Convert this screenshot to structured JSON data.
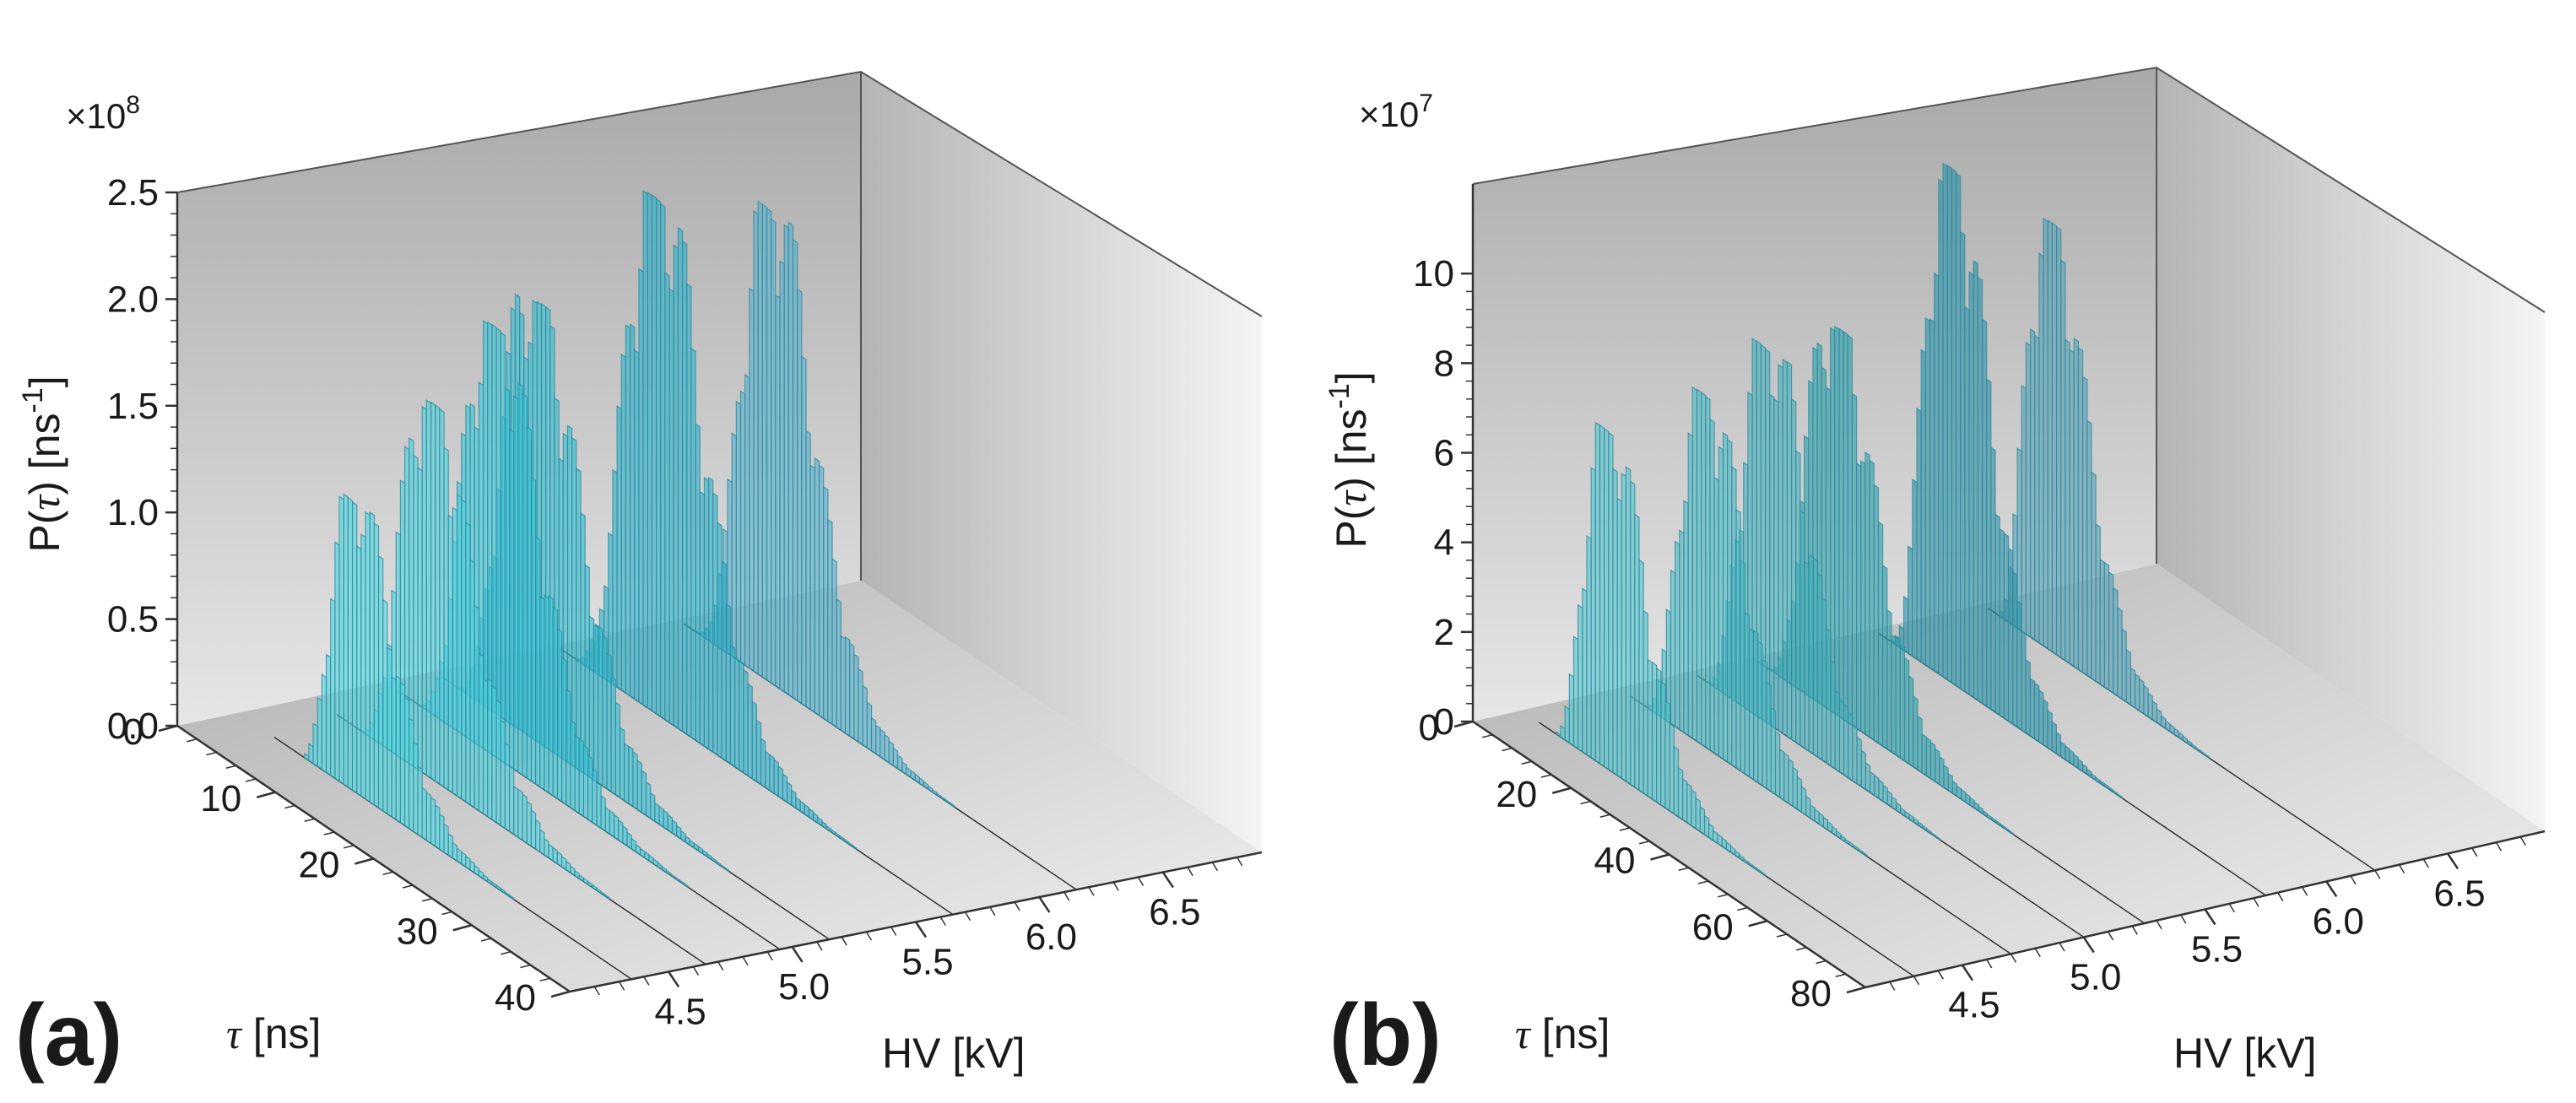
{
  "figure": {
    "panels": [
      "a",
      "b"
    ]
  },
  "chart_data": [
    {
      "type": "bar",
      "panel_label": "(a)",
      "title": "",
      "multiplier": "×10",
      "multiplier_exp": "8",
      "ylabel_pre": "P(",
      "ylabel_sym": "τ",
      "ylabel_mid": ") [ns",
      "ylabel_sup": "-1",
      "ylabel_post": "]",
      "xlabel_sym": "τ",
      "xlabel_text": " [ns]",
      "hvlabel": "HV [kV]",
      "p_ticks": [
        0.0,
        0.5,
        1.0,
        1.5,
        2.0,
        2.5
      ],
      "p_tick_labels": [
        "0.0",
        "0.5",
        "1.0",
        "1.5",
        "2.0",
        "2.5"
      ],
      "p_range": [
        0,
        2.5
      ],
      "tau_ticks": [
        0,
        10,
        20,
        30,
        40
      ],
      "tau_tick_labels": [
        "0",
        "10",
        "20",
        "30",
        "40"
      ],
      "tau_range": [
        0,
        40
      ],
      "hv_ticks": [
        4.5,
        5.0,
        5.5,
        6.0,
        6.5
      ],
      "hv_tick_labels": [
        "4.5",
        "5.0",
        "5.5",
        "6.0",
        "6.5"
      ],
      "hv_range": [
        4.1,
        6.9
      ],
      "series": [
        {
          "hv": 4.35,
          "mode": 12,
          "width": 3.2,
          "peak": 1.35,
          "onset": 6
        },
        {
          "hv": 4.65,
          "mode": 12,
          "width": 3.3,
          "peak": 1.75,
          "onset": 4
        },
        {
          "hv": 4.95,
          "mode": 11,
          "width": 3.3,
          "peak": 2.0,
          "onset": 2
        },
        {
          "hv": 5.15,
          "mode": 10,
          "width": 3.4,
          "peak": 2.05,
          "onset": 1
        },
        {
          "hv": 5.65,
          "mode": 10,
          "width": 3.2,
          "peak": 2.4,
          "onset": 0
        },
        {
          "hv": 6.15,
          "mode": 9,
          "width": 3.0,
          "peak": 2.2,
          "onset": 0
        }
      ]
    },
    {
      "type": "bar",
      "panel_label": "(b)",
      "title": "",
      "multiplier": "×10",
      "multiplier_exp": "7",
      "ylabel_pre": "P(",
      "ylabel_sym": "τ",
      "ylabel_mid": ") [ns",
      "ylabel_sup": "-1",
      "ylabel_post": "]",
      "xlabel_sym": "τ",
      "xlabel_text": " [ns]",
      "hvlabel": "HV [kV]",
      "p_ticks": [
        0,
        2,
        4,
        6,
        8,
        10
      ],
      "p_tick_labels": [
        "0",
        "2",
        "4",
        "6",
        "8",
        "10"
      ],
      "p_range": [
        0,
        12
      ],
      "tau_ticks": [
        0,
        20,
        40,
        60,
        80
      ],
      "tau_tick_labels": [
        "0",
        "20",
        "40",
        "60",
        "80"
      ],
      "tau_range": [
        0,
        80
      ],
      "hv_ticks": [
        4.5,
        5.0,
        5.5,
        6.0,
        6.5
      ],
      "hv_tick_labels": [
        "4.5",
        "5.0",
        "5.5",
        "6.0",
        "6.5"
      ],
      "hv_range": [
        4.1,
        6.9
      ],
      "series": [
        {
          "hv": 4.3,
          "mode": 18,
          "width": 6.0,
          "peak": 7.5,
          "onset": 6
        },
        {
          "hv": 4.7,
          "mode": 18,
          "width": 6.0,
          "peak": 7.8,
          "onset": 4
        },
        {
          "hv": 5.0,
          "mode": 16,
          "width": 6.5,
          "peak": 8.3,
          "onset": 2
        },
        {
          "hv": 5.25,
          "mode": 17,
          "width": 6.5,
          "peak": 8.6,
          "onset": 2
        },
        {
          "hv": 5.75,
          "mode": 16,
          "width": 6.0,
          "peak": 11.4,
          "onset": 2
        },
        {
          "hv": 6.2,
          "mode": 14,
          "width": 6.0,
          "peak": 9.5,
          "onset": 2
        }
      ]
    }
  ]
}
